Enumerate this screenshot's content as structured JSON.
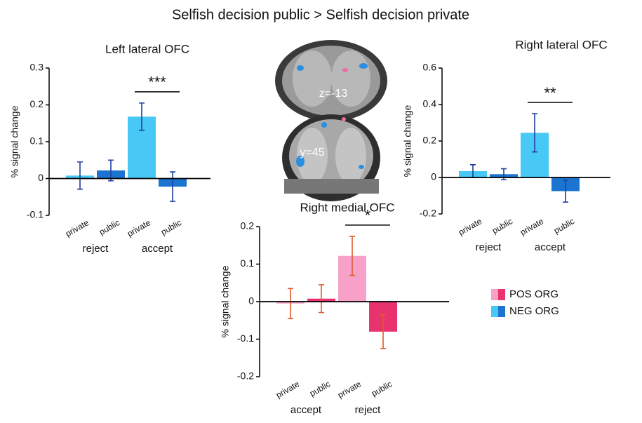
{
  "title": "Selfish decision public > Selfish decision private",
  "image_labels": [
    "z=-13",
    "y=45"
  ],
  "legend": [
    {
      "label": "POS ORG",
      "colors": [
        "#f7a1c9",
        "#e8336e"
      ]
    },
    {
      "label": "NEG ORG",
      "colors": [
        "#47c8f5",
        "#1b75d0"
      ]
    }
  ],
  "chart_data": [
    {
      "type": "bar",
      "title": "Left lateral OFC",
      "ylabel": "% signal change",
      "categories": [
        "private",
        "public",
        "private",
        "public"
      ],
      "group_labels": [
        "reject",
        "accept"
      ],
      "values": [
        0.008,
        0.022,
        0.168,
        -0.022
      ],
      "errors": [
        0.037,
        0.028,
        0.037,
        0.04
      ],
      "colors": [
        "#47c8f5",
        "#1b75d0",
        "#47c8f5",
        "#1b75d0"
      ],
      "error_color": "#1f3ea0",
      "ylim": [
        -0.1,
        0.3
      ],
      "yticks": [
        -0.1,
        0,
        0.1,
        0.2,
        0.3
      ],
      "significance": {
        "label": "***",
        "bars": [
          2,
          3
        ]
      }
    },
    {
      "type": "bar",
      "title": "Right lateral OFC",
      "ylabel": "% signal change",
      "categories": [
        "private",
        "public",
        "private",
        "public"
      ],
      "group_labels": [
        "reject",
        "accept"
      ],
      "values": [
        0.035,
        0.018,
        0.245,
        -0.075
      ],
      "errors": [
        0.035,
        0.03,
        0.105,
        0.06
      ],
      "colors": [
        "#47c8f5",
        "#1b75d0",
        "#47c8f5",
        "#1b75d0"
      ],
      "error_color": "#1f3ea0",
      "ylim": [
        -0.2,
        0.6
      ],
      "yticks": [
        -0.2,
        0,
        0.2,
        0.4,
        0.6
      ],
      "significance": {
        "label": "**",
        "bars": [
          2,
          3
        ]
      }
    },
    {
      "type": "bar",
      "title": "Right medial OFC",
      "ylabel": "% signal change",
      "categories": [
        "private",
        "public",
        "private",
        "public"
      ],
      "group_labels": [
        "accept",
        "reject"
      ],
      "values": [
        -0.005,
        0.008,
        0.122,
        -0.08
      ],
      "errors": [
        0.04,
        0.037,
        0.052,
        0.045
      ],
      "colors": [
        "#f7a1c9",
        "#e8336e",
        "#f7a1c9",
        "#e8336e"
      ],
      "error_color": "#e05a2a",
      "ylim": [
        -0.2,
        0.2
      ],
      "yticks": [
        -0.2,
        -0.1,
        0,
        0.1,
        0.2
      ],
      "significance": {
        "label": "*",
        "bars": [
          2,
          3
        ]
      }
    }
  ]
}
